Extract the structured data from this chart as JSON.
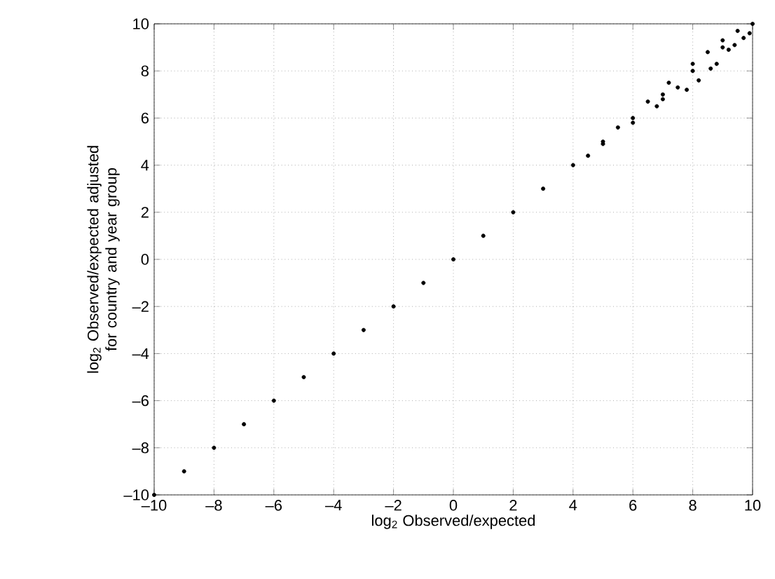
{
  "chart_data": {
    "type": "scatter",
    "xlabel": "log$_{2}$ Observed/expected",
    "ylabel": "log$_{2}$ Observed/expected adjusted for country and year group",
    "x": [
      -10,
      -9,
      -8,
      -7,
      -6,
      -5,
      -4,
      -3,
      -2,
      -1,
      0,
      1,
      2,
      3,
      4,
      5,
      6,
      7,
      8,
      9,
      10,
      5,
      5.5,
      6,
      6.5,
      7,
      7.5,
      7.8,
      8,
      8.2,
      8.5,
      8.8,
      9,
      9.2,
      9.5,
      9.7,
      9.9,
      7.2,
      6.8,
      8.6,
      4.5,
      9.4
    ],
    "values": [
      -10,
      -9,
      -8,
      -7,
      -6,
      -5,
      -4,
      -3,
      -2,
      -1,
      0,
      1,
      2,
      3,
      4,
      5,
      6,
      7,
      8,
      9,
      10,
      4.9,
      5.6,
      5.8,
      6.7,
      6.8,
      7.3,
      7.2,
      8.3,
      7.6,
      8.8,
      8.3,
      9.3,
      8.9,
      9.7,
      9.4,
      9.6,
      7.5,
      6.5,
      8.1,
      4.4,
      9.1
    ],
    "color": "#000000",
    "xlim": [
      -10,
      10
    ],
    "ylim": [
      -10,
      10
    ],
    "xticks": [
      {
        "value": -10,
        "label": "–10"
      },
      {
        "value": -8,
        "label": "–8"
      },
      {
        "value": -6,
        "label": "–6"
      },
      {
        "value": -4,
        "label": "–4"
      },
      {
        "value": -2,
        "label": "–2"
      },
      0,
      2,
      4,
      6,
      8,
      10
    ],
    "yticks": [
      {
        "value": -10,
        "label": "–10"
      },
      {
        "value": -8,
        "label": "–8"
      },
      {
        "value": -6,
        "label": "–6"
      },
      {
        "value": -4,
        "label": "–4"
      },
      {
        "value": -2,
        "label": "–2"
      },
      0,
      2,
      4,
      6,
      8,
      10
    ],
    "grid": true
  }
}
